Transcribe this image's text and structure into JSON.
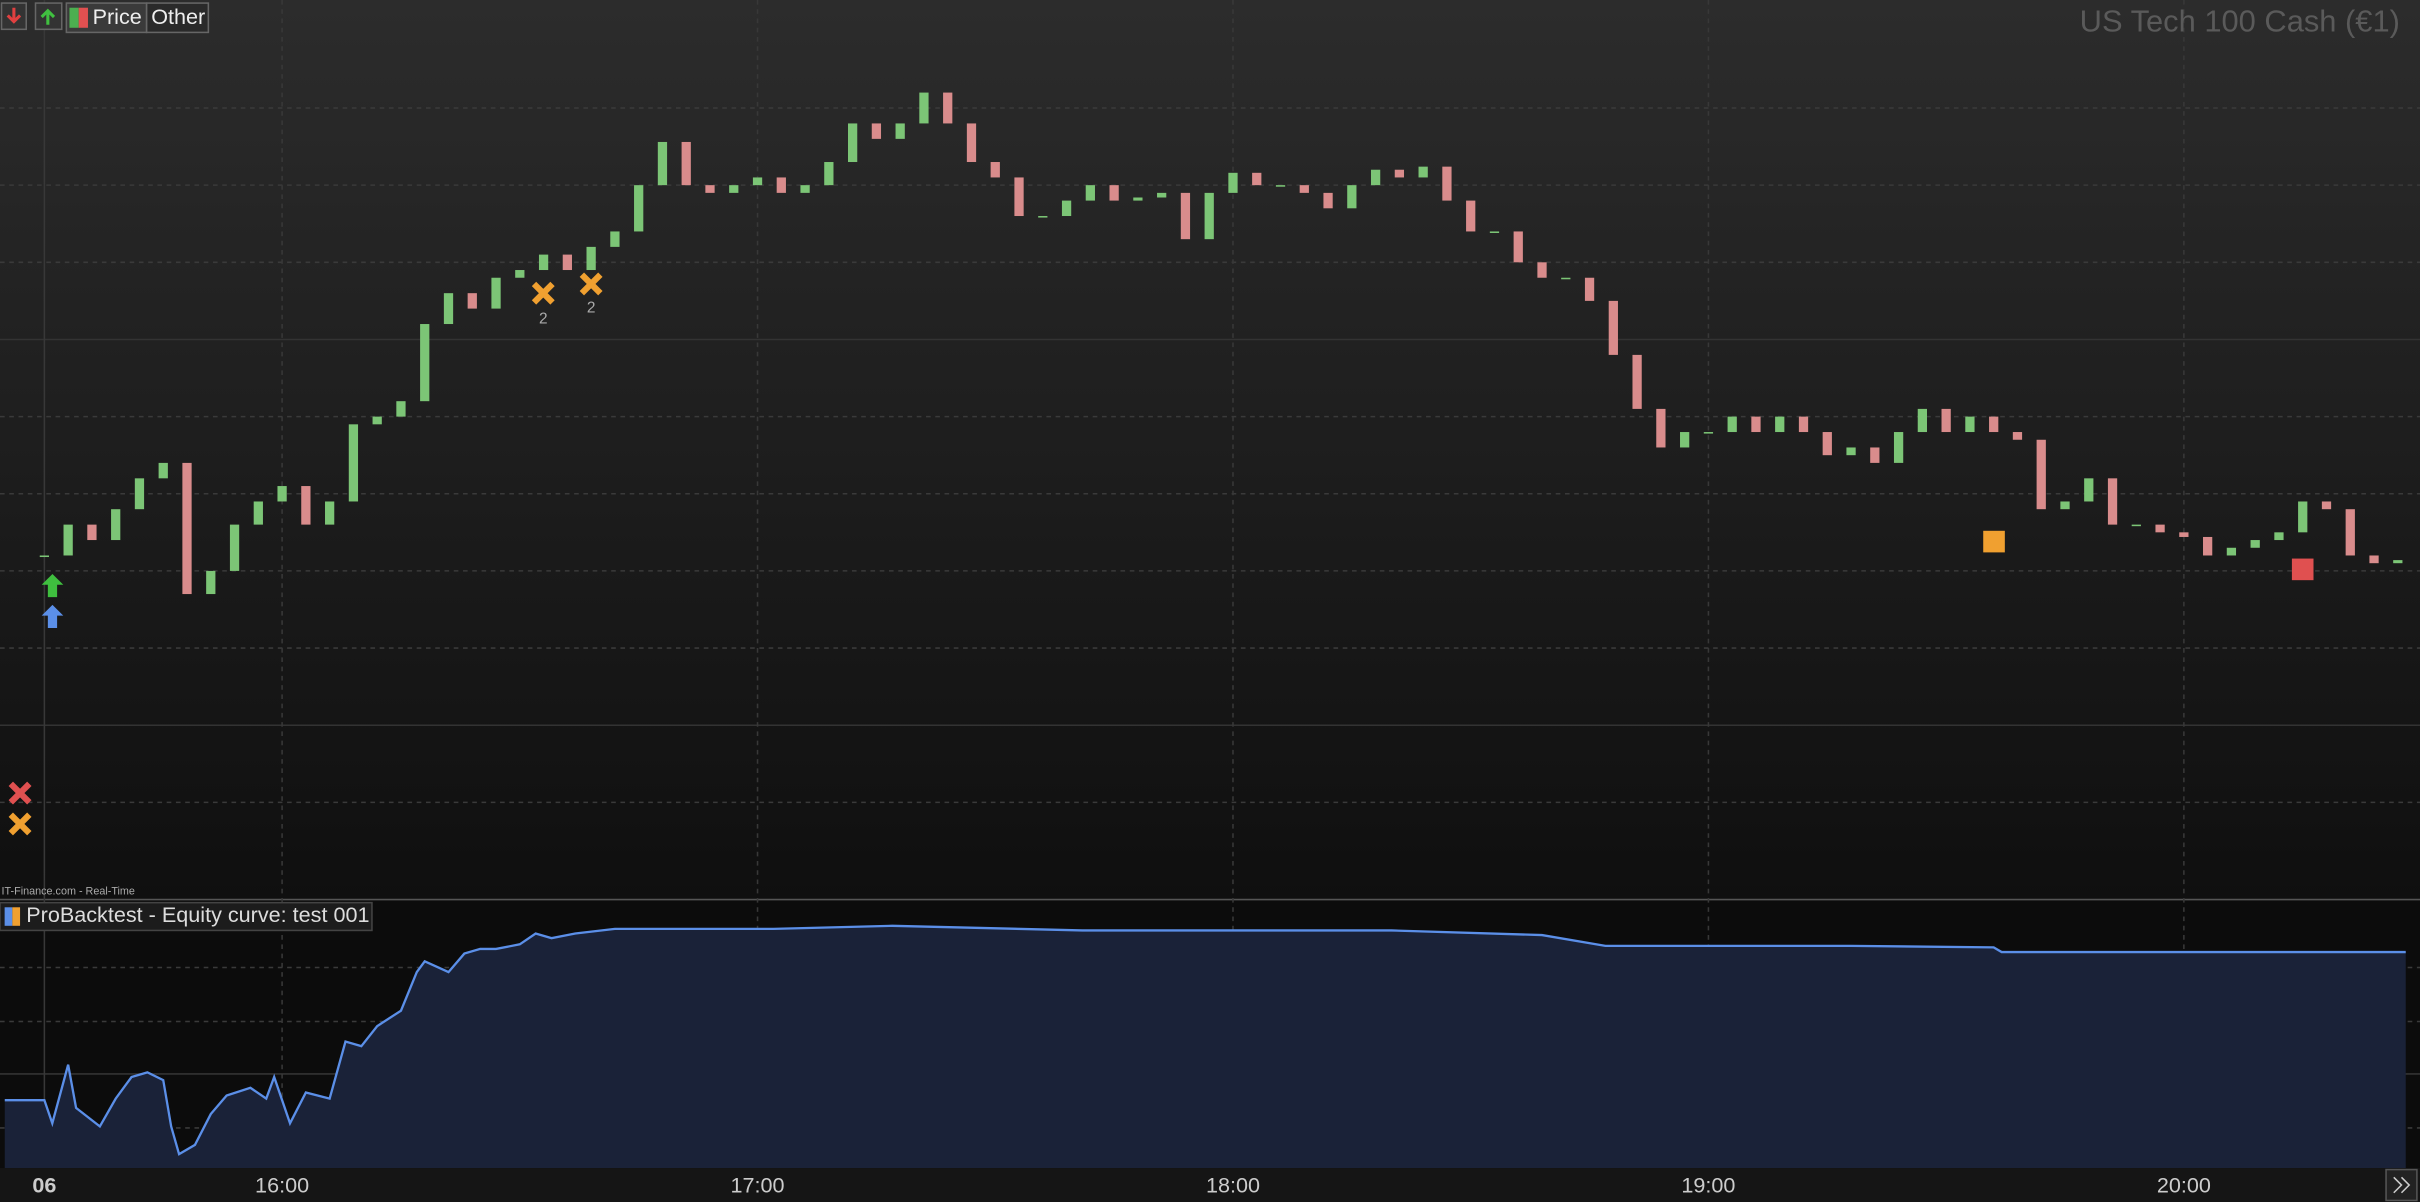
{
  "toolbar": {
    "tabs": [
      "Price",
      "Other"
    ]
  },
  "chart_data": [
    {
      "type": "candlestick",
      "title": "US Tech 100 Cash (€1)",
      "source": "IT-Finance.com - Real-Time",
      "x": [
        930,
        933,
        936,
        939,
        942,
        945,
        948,
        951,
        954,
        957,
        960,
        963,
        966,
        969,
        972,
        975,
        978,
        981,
        984,
        987,
        990,
        993,
        996,
        999,
        1002,
        1005,
        1008,
        1011,
        1014,
        1017,
        1020,
        1023,
        1026,
        1029,
        1032,
        1035,
        1038,
        1041,
        1044,
        1047,
        1050,
        1053,
        1056,
        1059,
        1062,
        1065,
        1068,
        1071,
        1074,
        1077,
        1080,
        1083,
        1086,
        1089,
        1092,
        1095,
        1098,
        1101,
        1104,
        1107,
        1110,
        1113,
        1116,
        1119,
        1122,
        1125,
        1128,
        1131,
        1134,
        1137,
        1140,
        1143,
        1146,
        1149,
        1152,
        1155,
        1158,
        1161,
        1164,
        1167,
        1170,
        1173,
        1176,
        1179,
        1182,
        1185,
        1188,
        1191,
        1194,
        1197,
        1200,
        1203,
        1206,
        1209,
        1212,
        1215,
        1218,
        1221,
        1224,
        1227
      ],
      "values": [
        223,
        243,
        233,
        253,
        273,
        283,
        198,
        213,
        243,
        258,
        268,
        243,
        258,
        308,
        313,
        323,
        373,
        393,
        383,
        403,
        408,
        418,
        408,
        423,
        433,
        463,
        491,
        463,
        458,
        463,
        468,
        458,
        463,
        478,
        503,
        493,
        503,
        523,
        503,
        478,
        468,
        443,
        443,
        453,
        463,
        453,
        455,
        458,
        428,
        458,
        471,
        463,
        463,
        458,
        448,
        463,
        473,
        468,
        475,
        453,
        433,
        433,
        413,
        403,
        403,
        388,
        353,
        318,
        293,
        303,
        303,
        313,
        303,
        313,
        303,
        288,
        293,
        283,
        303,
        318,
        303,
        313,
        303,
        298,
        253,
        258,
        273,
        243,
        243,
        238,
        235,
        223,
        228,
        233,
        238,
        258,
        253,
        223,
        218,
        220
      ],
      "up_color": "#7cc576",
      "down_color": "#d98c8c",
      "xlim": [
        924.4,
        1229.8
      ],
      "ylim": [
        0,
        583
      ],
      "xticks": [
        {
          "value": 930,
          "label": "06"
        },
        {
          "value": 960,
          "label": "16:00"
        },
        {
          "value": 1020,
          "label": "17:00"
        },
        {
          "value": 1080,
          "label": "18:00"
        },
        {
          "value": 1140,
          "label": "19:00"
        },
        {
          "value": 1200,
          "label": "20:00"
        }
      ],
      "grid": true,
      "annotations": [
        "2",
        "2"
      ]
    },
    {
      "type": "area",
      "title": "ProBacktest - Equity curve: test 001",
      "x": [
        925,
        930,
        931,
        933,
        934,
        937,
        939,
        941,
        943,
        945,
        946,
        947,
        949,
        951,
        953,
        956,
        958,
        959,
        961,
        963,
        966,
        968,
        970,
        972,
        975,
        977,
        978,
        981,
        983,
        985,
        987,
        990,
        992,
        994,
        997,
        1002,
        1022,
        1037,
        1061,
        1080,
        1100,
        1119,
        1127,
        1139,
        1158,
        1176,
        1177,
        1228
      ],
      "values": [
        44,
        44,
        29,
        67,
        39,
        27,
        45,
        59,
        62,
        57,
        27,
        9,
        15,
        35,
        47,
        52,
        45,
        59,
        29,
        49,
        45,
        82,
        79,
        92,
        102,
        127,
        134,
        127,
        139,
        142,
        142,
        145,
        152,
        149,
        152,
        155,
        155,
        157,
        154,
        154,
        154,
        151,
        144,
        144,
        144,
        143,
        140,
        140
      ],
      "color": "#5b8fe8",
      "fill": "#1a2238",
      "xlim": [
        924.4,
        1229.8
      ],
      "ylim": [
        0,
        174
      ]
    }
  ]
}
